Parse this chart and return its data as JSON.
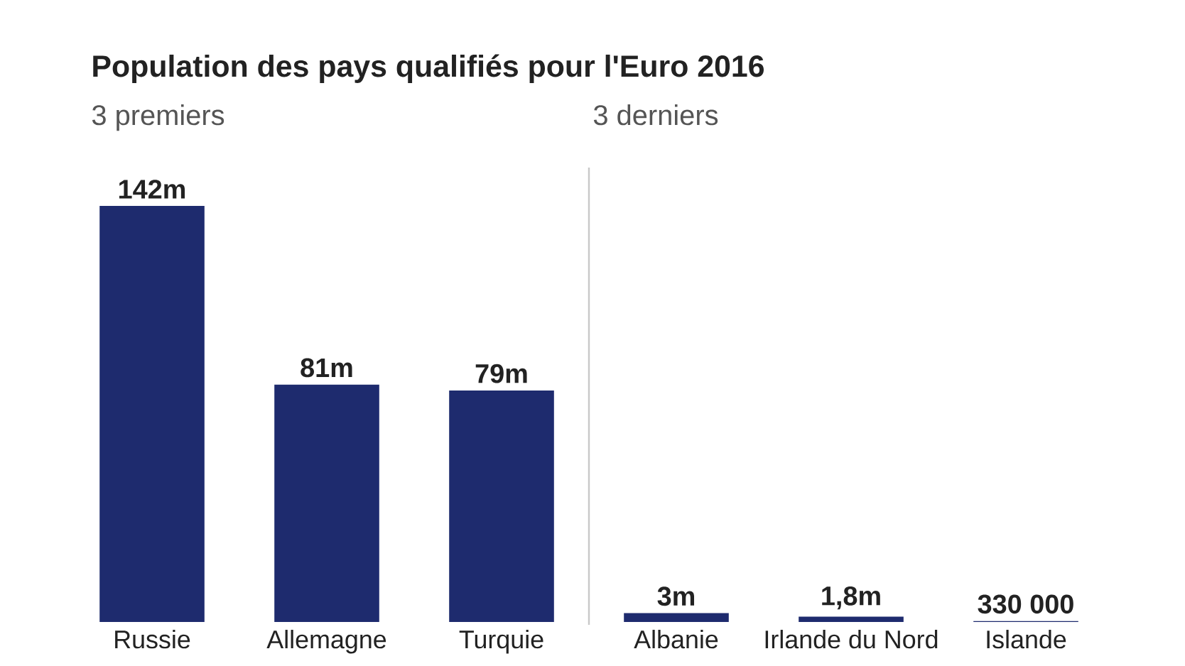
{
  "chart_data": {
    "type": "bar",
    "title": "Population des pays qualifiés pour l'Euro 2016",
    "annotations": [
      "3 premiers",
      "3 derniers"
    ],
    "categories": [
      "Russie",
      "Allemagne",
      "Turquie",
      "Albanie",
      "Irlande du Nord",
      "Islande"
    ],
    "values": [
      142000000,
      81000000,
      79000000,
      3000000,
      1800000,
      330000
    ],
    "value_labels": [
      "142m",
      "81m",
      "79m",
      "3m",
      "1,8m",
      "330 000"
    ],
    "color": "#1e2b6e"
  }
}
